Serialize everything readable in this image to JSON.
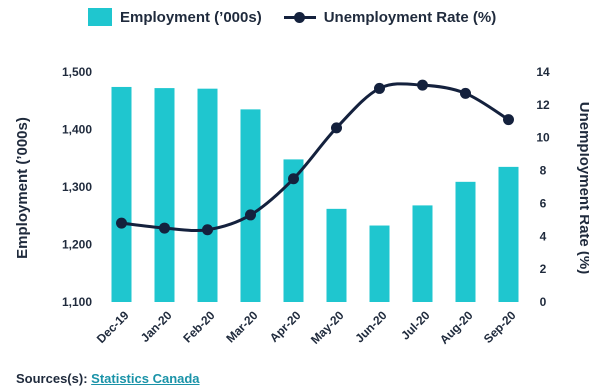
{
  "legend": {
    "bar_label": "Employment (’000s)",
    "line_label": "Unemployment Rate (%)"
  },
  "source": {
    "prefix": "Sources(s):",
    "link_text": "Statistics Canada"
  },
  "colors": {
    "bar": "#1fc6cf",
    "line": "#14213d",
    "text": "#1f2a3c",
    "link": "#1a93a8"
  },
  "chart_data": {
    "type": "bar",
    "categories": [
      "Dec-19",
      "Jan-20",
      "Feb-20",
      "Mar-20",
      "Apr-20",
      "May-20",
      "Jun-20",
      "Jul-20",
      "Aug-20",
      "Sep-20"
    ],
    "series": [
      {
        "name": "Employment (’000s)",
        "type": "bar",
        "axis": "left",
        "values": [
          1474,
          1472,
          1471,
          1435,
          1348,
          1262,
          1233,
          1268,
          1309,
          1335
        ]
      },
      {
        "name": "Unemployment Rate (%)",
        "type": "line",
        "axis": "right",
        "values": [
          4.8,
          4.5,
          4.4,
          5.3,
          7.5,
          10.6,
          13.0,
          13.2,
          12.7,
          11.1
        ]
      }
    ],
    "ylabel_left": "Employment (’000s)",
    "ylabel_right": "Unemployment Rate (%)",
    "ylim_left": [
      1100,
      1500
    ],
    "yticks_left": [
      "1,100",
      "1,200",
      "1,300",
      "1,400",
      "1,500"
    ],
    "ylim_right": [
      0,
      14
    ],
    "yticks_right": [
      "0",
      "2",
      "4",
      "6",
      "8",
      "10",
      "12",
      "14"
    ],
    "grid": false,
    "legend_position": "top"
  }
}
